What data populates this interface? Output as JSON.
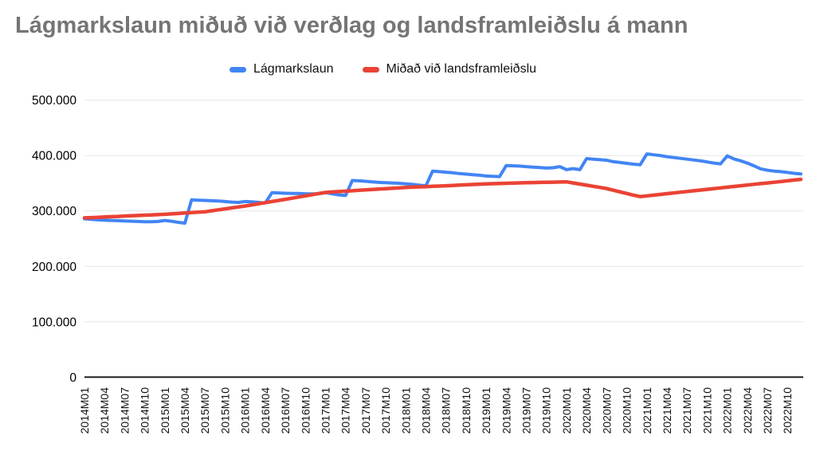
{
  "title": "Lágmarkslaun miðuð við verðlag og landsframleiðslu á mann",
  "legend": [
    {
      "label": "Lágmarkslaun",
      "color": "#4285f4"
    },
    {
      "label": "Miðað við landsframleiðslu",
      "color": "#ea4335"
    }
  ],
  "colors": {
    "title_text": "#757575",
    "grid": "#e6e6e6",
    "axis_line": "#212121",
    "tick_text": "#111111",
    "series_blue": "#4285f4",
    "series_red": "#ea4335"
  },
  "chart_data": {
    "type": "line",
    "title": "Lágmarkslaun miðuð við verðlag og landsframleiðslu á mann",
    "xlabel": "",
    "ylabel": "",
    "ylim": [
      0,
      500000
    ],
    "grid": true,
    "legend_position": "top",
    "x_tick_every": 3,
    "y_ticks": [
      {
        "value": 0,
        "label": "0"
      },
      {
        "value": 100000,
        "label": "100.000"
      },
      {
        "value": 200000,
        "label": "200.000"
      },
      {
        "value": 300000,
        "label": "300.000"
      },
      {
        "value": 400000,
        "label": "400.000"
      },
      {
        "value": 500000,
        "label": "500.000"
      }
    ],
    "x": [
      "2014M01",
      "2014M02",
      "2014M03",
      "2014M04",
      "2014M05",
      "2014M06",
      "2014M07",
      "2014M08",
      "2014M09",
      "2014M10",
      "2014M11",
      "2014M12",
      "2015M01",
      "2015M02",
      "2015M03",
      "2015M04",
      "2015M05",
      "2015M06",
      "2015M07",
      "2015M08",
      "2015M09",
      "2015M10",
      "2015M11",
      "2015M12",
      "2016M01",
      "2016M02",
      "2016M03",
      "2016M04",
      "2016M05",
      "2016M06",
      "2016M07",
      "2016M08",
      "2016M09",
      "2016M10",
      "2016M11",
      "2016M12",
      "2017M01",
      "2017M02",
      "2017M03",
      "2017M04",
      "2017M05",
      "2017M06",
      "2017M07",
      "2017M08",
      "2017M09",
      "2017M10",
      "2017M11",
      "2017M12",
      "2018M01",
      "2018M02",
      "2018M03",
      "2018M04",
      "2018M05",
      "2018M06",
      "2018M07",
      "2018M08",
      "2018M09",
      "2018M10",
      "2018M11",
      "2018M12",
      "2019M01",
      "2019M02",
      "2019M03",
      "2019M04",
      "2019M05",
      "2019M06",
      "2019M07",
      "2019M08",
      "2019M09",
      "2019M10",
      "2019M11",
      "2019M12",
      "2020M01",
      "2020M02",
      "2020M03",
      "2020M04",
      "2020M05",
      "2020M06",
      "2020M07",
      "2020M08",
      "2020M09",
      "2020M10",
      "2020M11",
      "2020M12",
      "2021M01",
      "2021M02",
      "2021M03",
      "2021M04",
      "2021M05",
      "2021M06",
      "2021M07",
      "2021M08",
      "2021M09",
      "2021M10",
      "2021M11",
      "2021M12",
      "2022M01",
      "2022M02",
      "2022M03",
      "2022M04",
      "2022M05",
      "2022M06",
      "2022M07",
      "2022M08",
      "2022M09",
      "2022M10",
      "2022M11",
      "2022M12"
    ],
    "series": [
      {
        "name": "Lágmarkslaun",
        "color": "#4285f4",
        "values": [
          286000,
          285000,
          284000,
          283500,
          283000,
          282500,
          282000,
          281500,
          281000,
          280500,
          280500,
          281000,
          283000,
          281500,
          279500,
          278000,
          320000,
          319500,
          319000,
          318500,
          318000,
          317000,
          316000,
          315500,
          317000,
          316500,
          315500,
          314500,
          333000,
          332500,
          332000,
          331500,
          331500,
          331000,
          331000,
          331000,
          333000,
          331000,
          329000,
          328000,
          355000,
          354500,
          353500,
          352500,
          351500,
          351000,
          350500,
          350000,
          349000,
          348000,
          346500,
          345500,
          372000,
          371000,
          370000,
          369000,
          367500,
          366500,
          365500,
          364500,
          363000,
          362500,
          362000,
          382000,
          381500,
          381000,
          380000,
          379000,
          378500,
          377500,
          378000,
          380000,
          374500,
          376500,
          374500,
          394500,
          393500,
          392500,
          391500,
          389000,
          387500,
          386000,
          384500,
          383500,
          403000,
          401500,
          400000,
          398000,
          396500,
          395000,
          393500,
          392000,
          390500,
          388500,
          386500,
          385000,
          399500,
          394000,
          390500,
          386500,
          381500,
          376000,
          373500,
          372000,
          371000,
          369500,
          368000,
          367000
        ]
      },
      {
        "name": "Miðað við landsframleiðslu",
        "color": "#ea4335",
        "values": [
          287500,
          288000,
          288600,
          289100,
          289700,
          290200,
          290800,
          291300,
          291800,
          292400,
          292900,
          293500,
          294000,
          294800,
          295500,
          296300,
          297000,
          297800,
          298500,
          300300,
          302000,
          303800,
          305500,
          307300,
          309000,
          311000,
          313000,
          315000,
          317000,
          319000,
          321000,
          323100,
          325200,
          327300,
          329400,
          331500,
          333500,
          334300,
          335000,
          335800,
          336500,
          337300,
          338000,
          338800,
          339500,
          340300,
          341000,
          341800,
          342500,
          343000,
          343500,
          344000,
          344500,
          345000,
          345500,
          346100,
          346700,
          347300,
          347800,
          348400,
          349000,
          349300,
          349700,
          350000,
          350300,
          350700,
          351000,
          351300,
          351500,
          351800,
          352000,
          352300,
          352500,
          350500,
          348500,
          346500,
          344500,
          342500,
          340500,
          337500,
          334500,
          331500,
          328500,
          326000,
          327300,
          328600,
          329900,
          331200,
          332500,
          333800,
          335100,
          336400,
          337700,
          339000,
          340300,
          341600,
          342900,
          344200,
          345500,
          346800,
          348100,
          349400,
          350600,
          351900,
          353200,
          354500,
          355800,
          357000
        ]
      }
    ]
  }
}
